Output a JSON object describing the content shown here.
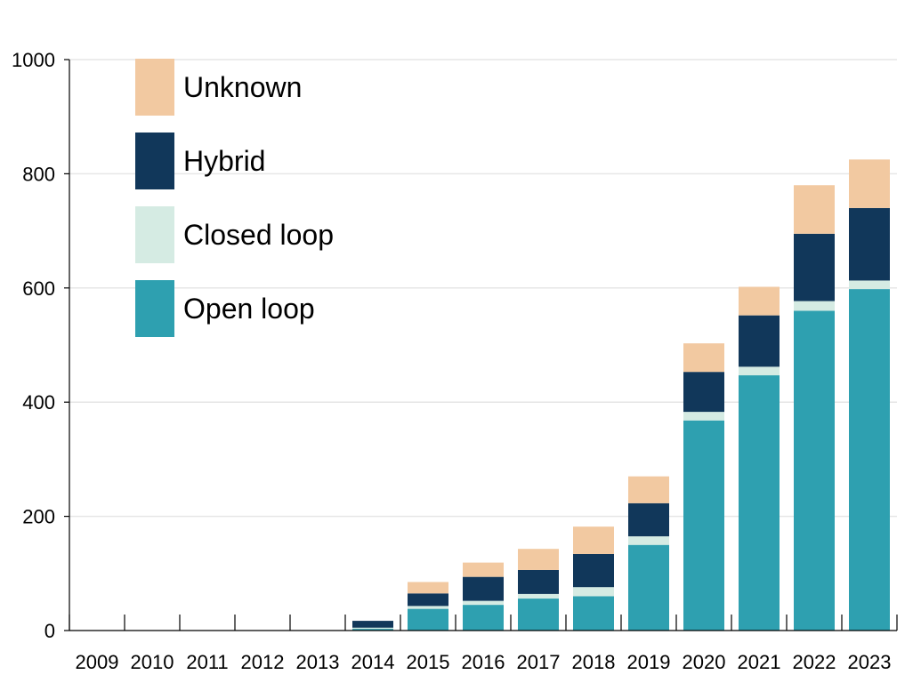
{
  "chart_data": {
    "type": "bar",
    "stacked": true,
    "categories": [
      "2009",
      "2010",
      "2011",
      "2012",
      "2013",
      "2014",
      "2015",
      "2016",
      "2017",
      "2018",
      "2019",
      "2020",
      "2021",
      "2022",
      "2023"
    ],
    "series": [
      {
        "name": "Open loop",
        "color": "#2ea0b0",
        "values": [
          0,
          0,
          0,
          0,
          0,
          3,
          38,
          45,
          56,
          60,
          150,
          368,
          447,
          560,
          598
        ]
      },
      {
        "name": "Closed loop",
        "color": "#d5ebe3",
        "values": [
          0,
          0,
          0,
          0,
          0,
          2,
          5,
          7,
          8,
          16,
          15,
          15,
          15,
          17,
          15
        ]
      },
      {
        "name": "Hybrid",
        "color": "#11375a",
        "values": [
          0,
          0,
          0,
          0,
          0,
          12,
          22,
          42,
          42,
          58,
          58,
          70,
          90,
          118,
          127
        ]
      },
      {
        "name": "Unknown",
        "color": "#f2c9a1",
        "values": [
          0,
          0,
          0,
          0,
          0,
          0,
          20,
          25,
          37,
          48,
          47,
          50,
          50,
          85,
          85
        ]
      }
    ],
    "legend_order": [
      "Unknown",
      "Hybrid",
      "Closed loop",
      "Open loop"
    ],
    "ylim": [
      0,
      1000
    ],
    "yticks": [
      0,
      200,
      400,
      600,
      800,
      1000
    ],
    "grid": true,
    "legend_position": "top-left",
    "title": "",
    "xlabel": "",
    "ylabel": ""
  }
}
